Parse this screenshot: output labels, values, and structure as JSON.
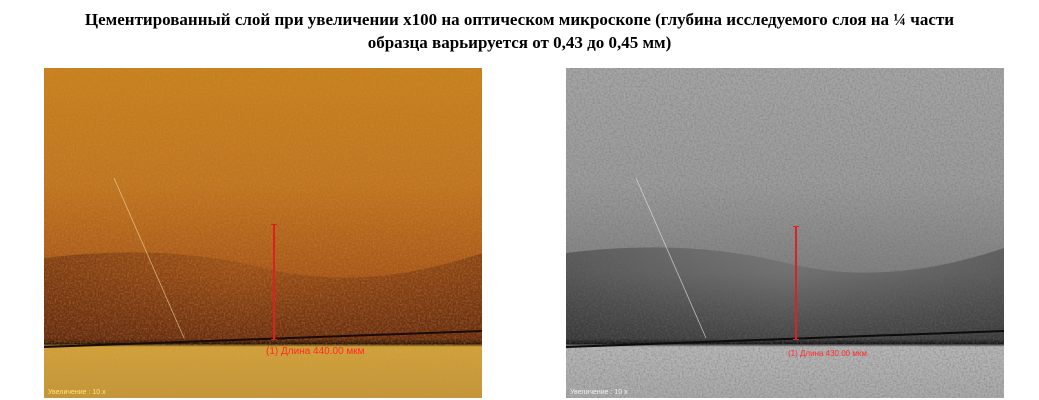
{
  "caption": {
    "line1": "Цементированный слой при увеличении х100 на оптическом микроскопе (глубина исследуемого слоя на ¼ части",
    "line2": "образца варьируется от 0,43 до 0,45 мм)"
  },
  "left_image": {
    "style": "color",
    "measurement": "(1) Длина 440.00 мкм",
    "zoom_label": "Увеличение : 10 x",
    "colors": {
      "top": "#c77a1c",
      "band": "#7a3a14",
      "base": "#c79a3a",
      "marker": "#e02020"
    }
  },
  "right_image": {
    "style": "grayscale",
    "measurement": "(1) Длина 430.00 мкм",
    "zoom_label": "Увеличение : 10 x",
    "colors": {
      "top": "#9a9a9a",
      "band": "#555555",
      "base": "#b0b0b0",
      "marker": "#e02020"
    }
  }
}
